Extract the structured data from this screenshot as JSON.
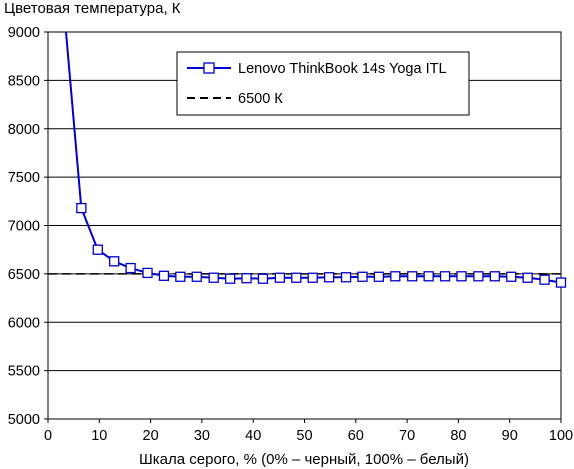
{
  "chart_data": {
    "type": "line",
    "ylabel": "Цветовая температура, К",
    "xlabel": "Шкала серого, % (0% – черный, 100% – белый)",
    "xlim": [
      0,
      100
    ],
    "ylim": [
      5000,
      9000
    ],
    "xticks": [
      0,
      10,
      20,
      30,
      40,
      50,
      60,
      70,
      80,
      90,
      100
    ],
    "yticks": [
      5000,
      5500,
      6000,
      6500,
      7000,
      7500,
      8000,
      8500,
      9000
    ],
    "grid": "horizontal",
    "legend_position": "top-center",
    "series": [
      {
        "name": "Lenovo ThinkBook 14s Yoga ITL",
        "color": "#0000cc",
        "marker": "square",
        "x": [
          3.5,
          6.5,
          9.7,
          12.9,
          16.1,
          19.4,
          22.6,
          25.8,
          29.0,
          32.3,
          35.5,
          38.7,
          41.9,
          45.2,
          48.4,
          51.6,
          54.8,
          58.1,
          61.3,
          64.5,
          67.7,
          71.0,
          74.2,
          77.4,
          80.6,
          83.9,
          87.1,
          90.3,
          93.5,
          96.8,
          100.0
        ],
        "y": [
          9000,
          7180,
          6750,
          6630,
          6560,
          6510,
          6480,
          6470,
          6470,
          6460,
          6450,
          6455,
          6450,
          6460,
          6460,
          6460,
          6465,
          6465,
          6470,
          6470,
          6475,
          6475,
          6475,
          6475,
          6475,
          6475,
          6475,
          6470,
          6460,
          6440,
          6410
        ]
      },
      {
        "name": "6500 К",
        "color": "#000000",
        "style": "dashed",
        "x": [
          0,
          100
        ],
        "y": [
          6500,
          6500
        ]
      }
    ]
  }
}
